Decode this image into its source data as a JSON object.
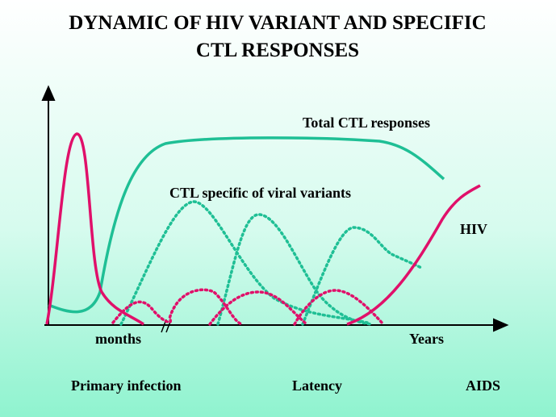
{
  "title": {
    "line1": "DYNAMIC OF HIV VARIANT AND SPECIFIC",
    "line2": "CTL RESPONSES"
  },
  "curve_labels": {
    "total": "Total CTL responses",
    "specific": "CTL specific of viral variants",
    "hiv": "HIV"
  },
  "axis_labels": {
    "left": "months",
    "right": "Years"
  },
  "phases": [
    "Primary infection",
    "Latency",
    "AIDS"
  ]
}
